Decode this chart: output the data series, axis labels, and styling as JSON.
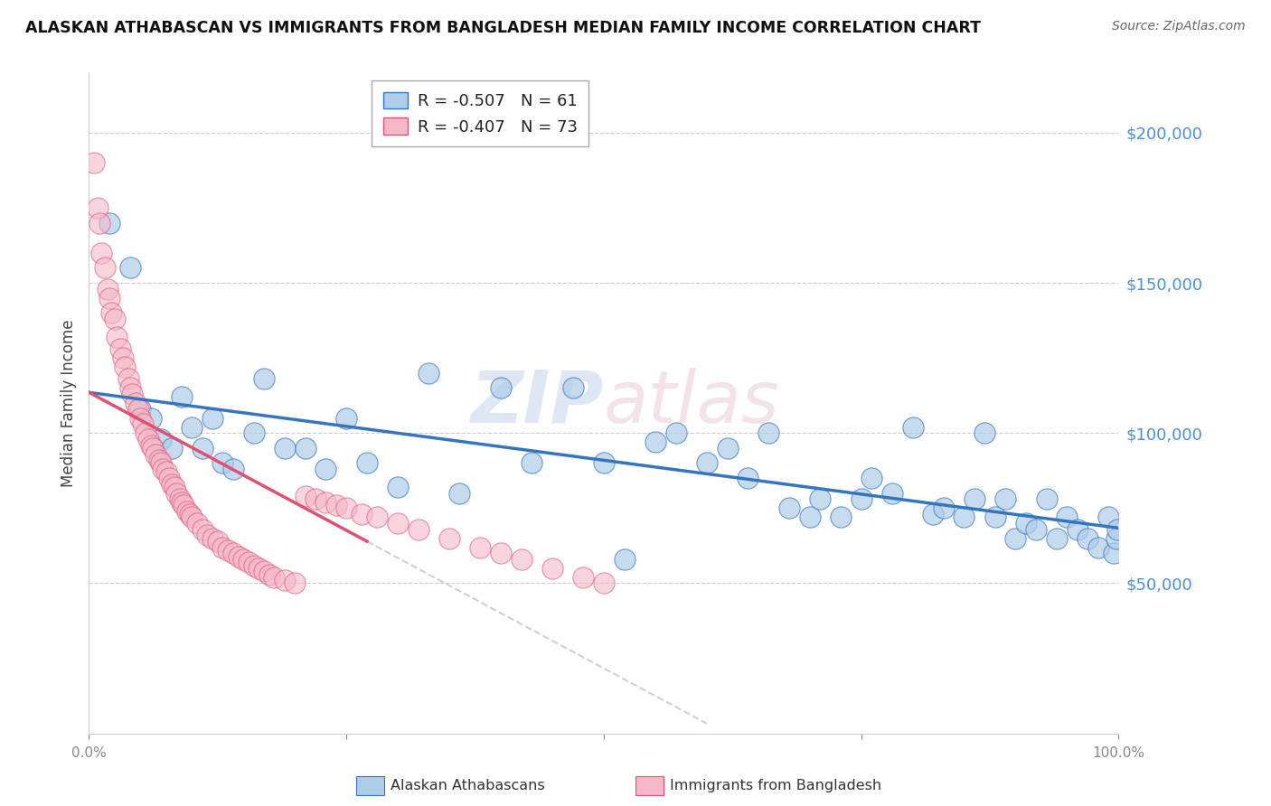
{
  "title": "ALASKAN ATHABASCAN VS IMMIGRANTS FROM BANGLADESH MEDIAN FAMILY INCOME CORRELATION CHART",
  "source": "Source: ZipAtlas.com",
  "ylabel": "Median Family Income",
  "watermark": "ZIPatlas",
  "legend_blue_r": "R = -0.507",
  "legend_blue_n": "N = 61",
  "legend_pink_r": "R = -0.407",
  "legend_pink_n": "N = 73",
  "blue_color": "#aecde8",
  "pink_color": "#f4b8c8",
  "line_blue": "#3575c0",
  "line_pink": "#e05070",
  "line_dashed_color": "#d0d0d0",
  "right_ytick_color": "#4a90d9",
  "yticks": [
    50000,
    100000,
    150000,
    200000
  ],
  "ylim": [
    0,
    220000
  ],
  "xlim": [
    0.0,
    1.0
  ],
  "blue_x": [
    0.02,
    0.04,
    0.05,
    0.06,
    0.07,
    0.08,
    0.09,
    0.1,
    0.11,
    0.12,
    0.13,
    0.14,
    0.16,
    0.17,
    0.19,
    0.21,
    0.23,
    0.25,
    0.27,
    0.3,
    0.33,
    0.36,
    0.4,
    0.43,
    0.47,
    0.5,
    0.52,
    0.55,
    0.57,
    0.6,
    0.62,
    0.64,
    0.66,
    0.68,
    0.7,
    0.71,
    0.73,
    0.75,
    0.76,
    0.78,
    0.8,
    0.82,
    0.83,
    0.85,
    0.86,
    0.87,
    0.88,
    0.89,
    0.9,
    0.91,
    0.92,
    0.93,
    0.94,
    0.95,
    0.96,
    0.97,
    0.98,
    0.99,
    0.995,
    0.998,
    0.999
  ],
  "blue_y": [
    170000,
    155000,
    108000,
    105000,
    98000,
    95000,
    112000,
    102000,
    95000,
    105000,
    90000,
    88000,
    100000,
    118000,
    95000,
    95000,
    88000,
    105000,
    90000,
    82000,
    120000,
    80000,
    115000,
    90000,
    115000,
    90000,
    58000,
    97000,
    100000,
    90000,
    95000,
    85000,
    100000,
    75000,
    72000,
    78000,
    72000,
    78000,
    85000,
    80000,
    102000,
    73000,
    75000,
    72000,
    78000,
    100000,
    72000,
    78000,
    65000,
    70000,
    68000,
    78000,
    65000,
    72000,
    68000,
    65000,
    62000,
    72000,
    60000,
    65000,
    68000
  ],
  "pink_x": [
    0.005,
    0.008,
    0.01,
    0.012,
    0.015,
    0.018,
    0.02,
    0.022,
    0.025,
    0.027,
    0.03,
    0.033,
    0.035,
    0.038,
    0.04,
    0.042,
    0.045,
    0.048,
    0.05,
    0.052,
    0.055,
    0.058,
    0.06,
    0.062,
    0.065,
    0.068,
    0.07,
    0.072,
    0.075,
    0.078,
    0.08,
    0.083,
    0.085,
    0.088,
    0.09,
    0.092,
    0.095,
    0.098,
    0.1,
    0.105,
    0.11,
    0.115,
    0.12,
    0.125,
    0.13,
    0.135,
    0.14,
    0.145,
    0.15,
    0.155,
    0.16,
    0.165,
    0.17,
    0.175,
    0.18,
    0.19,
    0.2,
    0.21,
    0.22,
    0.23,
    0.24,
    0.25,
    0.265,
    0.28,
    0.3,
    0.32,
    0.35,
    0.38,
    0.4,
    0.42,
    0.45,
    0.48,
    0.5
  ],
  "pink_y": [
    190000,
    175000,
    170000,
    160000,
    155000,
    148000,
    145000,
    140000,
    138000,
    132000,
    128000,
    125000,
    122000,
    118000,
    115000,
    113000,
    110000,
    108000,
    105000,
    103000,
    100000,
    98000,
    96000,
    95000,
    93000,
    91000,
    90000,
    88000,
    87000,
    85000,
    83000,
    82000,
    80000,
    78000,
    77000,
    76000,
    74000,
    73000,
    72000,
    70000,
    68000,
    66000,
    65000,
    64000,
    62000,
    61000,
    60000,
    59000,
    58000,
    57000,
    56000,
    55000,
    54000,
    53000,
    52000,
    51000,
    50000,
    79000,
    78000,
    77000,
    76000,
    75000,
    73000,
    72000,
    70000,
    68000,
    65000,
    62000,
    60000,
    58000,
    55000,
    52000,
    50000
  ]
}
